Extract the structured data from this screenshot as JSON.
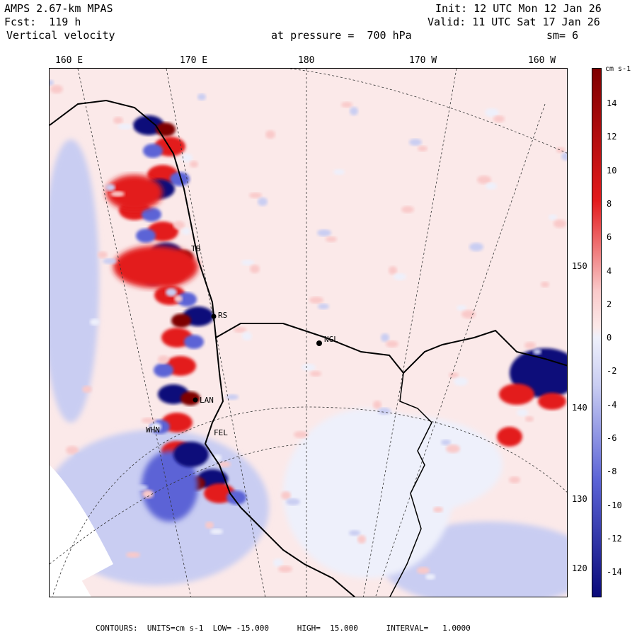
{
  "header": {
    "model": "AMPS 2.67-km MPAS",
    "forecast": "Fcst:  119 h",
    "variable": "Vertical velocity",
    "init": "Init: 12 UTC Mon 12 Jan 26",
    "valid": "Valid: 11 UTC Sat 17 Jan 26",
    "pressure": "at pressure =  700 hPa",
    "smoothing": "sm= 6"
  },
  "longitude_labels": [
    "160 E",
    "170 E",
    "180",
    "170 W",
    "160 W"
  ],
  "latitude_labels": [
    "150 W",
    "140 W",
    "130 W",
    "120 W"
  ],
  "stations": [
    "NGL",
    "LAN",
    "FEL",
    "WHN",
    "RS",
    "TB"
  ],
  "colorbar": {
    "units": "cm s-1",
    "ticks": [
      "14",
      "12",
      "10",
      "8",
      "6",
      "4",
      "2",
      "0",
      "-2",
      "-4",
      "-6",
      "-8",
      "-10",
      "-12",
      "-14"
    ],
    "colors": {
      "strong_up": "#7f0000",
      "moderate_up": "#e31a1c",
      "weak_up": "#f9c9c9",
      "near_zero_up": "#fbe9e9",
      "near_zero_down": "#eef0fb",
      "weak_down": "#c9cdf2",
      "moderate_down": "#5b63d6",
      "strong_down": "#0a0a7a"
    }
  },
  "footer": {
    "text": "CONTOURS:  UNITS=cm s-1  LOW= -15.000      HIGH=  15.000      INTERVAL=   1.0000"
  }
}
